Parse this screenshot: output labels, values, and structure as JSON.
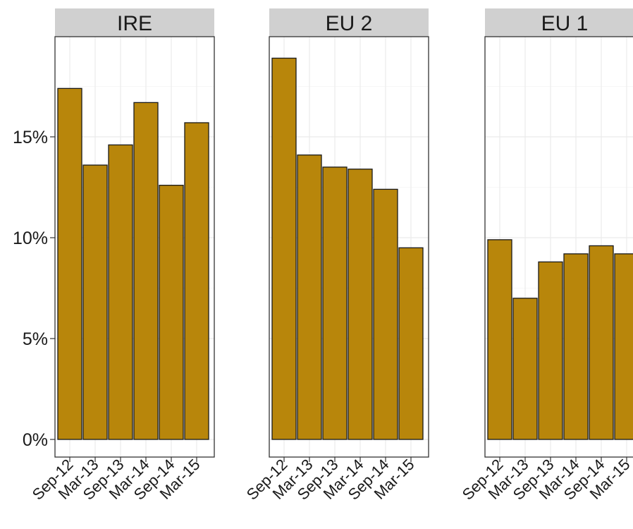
{
  "chart_data": {
    "type": "bar",
    "facet_style": "small-multiples",
    "y_format": "percent",
    "ylim": [
      0,
      0.2
    ],
    "y_ticks": [
      0,
      0.05,
      0.1,
      0.15
    ],
    "y_tick_labels": [
      "0%",
      "5%",
      "10%",
      "15%"
    ],
    "grid": true,
    "colors": {
      "bar_fill": "#b8860b",
      "bar_stroke": "#1a1a1a",
      "strip_fill": "#d0d0d0",
      "grid": "#ebebeb",
      "panel_border": "#333333"
    },
    "categories": [
      "Sep-12",
      "Mar-13",
      "Sep-13",
      "Mar-14",
      "Sep-14",
      "Mar-15"
    ],
    "panels": [
      {
        "label": "IRE",
        "values": [
          0.174,
          0.136,
          0.146,
          0.167,
          0.126,
          0.157
        ]
      },
      {
        "label": "EU 2",
        "values": [
          0.189,
          0.141,
          0.135,
          0.134,
          0.124,
          0.095
        ]
      },
      {
        "label": "EU 1",
        "values": [
          0.099,
          0.07,
          0.088,
          0.092,
          0.096,
          0.092
        ]
      }
    ]
  }
}
